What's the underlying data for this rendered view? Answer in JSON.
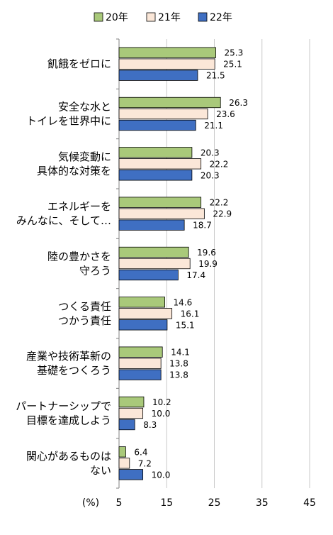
{
  "chart_data": {
    "type": "bar",
    "orientation": "horizontal",
    "unit_label": "(%)",
    "categories": [
      [
        "飢餓をゼロに"
      ],
      [
        "安全な水と",
        "トイレを世界中に"
      ],
      [
        "気候変動に",
        "具体的な対策を"
      ],
      [
        "エネルギーを",
        "みんなに、そして…"
      ],
      [
        "陸の豊かさを",
        "守ろう"
      ],
      [
        "つくる責任",
        "つかう責任"
      ],
      [
        "産業や技術革新の",
        "基礎をつくろう"
      ],
      [
        "パートナーシップで",
        "目標を達成しよう"
      ],
      [
        "関心があるものは",
        "ない"
      ]
    ],
    "series": [
      {
        "name": "20年",
        "color": "#a9c97a",
        "values": [
          25.3,
          26.3,
          20.3,
          22.2,
          19.6,
          14.6,
          14.1,
          10.2,
          6.4
        ]
      },
      {
        "name": "21年",
        "color": "#fbe7d8",
        "values": [
          25.1,
          23.6,
          22.2,
          22.9,
          19.9,
          16.1,
          13.8,
          10.0,
          7.2
        ]
      },
      {
        "name": "22年",
        "color": "#3f6fc2",
        "values": [
          21.5,
          21.1,
          20.3,
          18.7,
          17.4,
          15.1,
          13.8,
          8.3,
          10.0
        ]
      }
    ],
    "value_labels": [
      [
        "25.3",
        "25.1",
        "21.5"
      ],
      [
        "26.3",
        "23.6",
        "21.1"
      ],
      [
        "20.3",
        "22.2",
        "20.3"
      ],
      [
        "22.2",
        "22.9",
        "18.7"
      ],
      [
        "19.6",
        "19.9",
        "17.4"
      ],
      [
        "14.6",
        "16.1",
        "15.1"
      ],
      [
        "14.1",
        "13.8",
        "13.8"
      ],
      [
        "10.2",
        "10.0",
        "8.3"
      ],
      [
        "6.4",
        "7.2",
        "10.0"
      ]
    ],
    "xlim": [
      5,
      45
    ],
    "xticks": [
      5,
      15,
      25,
      35,
      45
    ],
    "grid": true,
    "legend_position": "top"
  }
}
